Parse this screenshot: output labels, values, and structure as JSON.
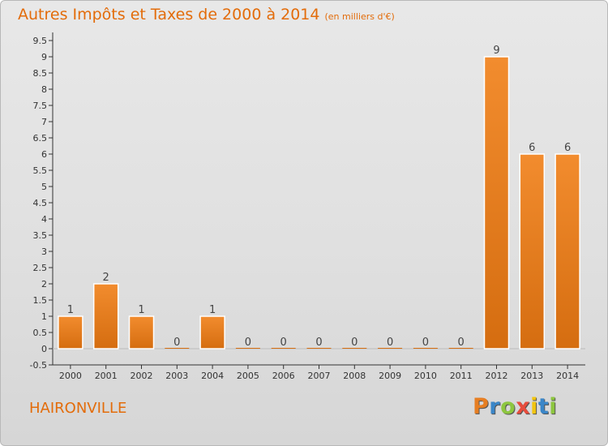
{
  "header": {
    "title": "Autres Impôts et Taxes de 2000 à 2014",
    "subtitle": "(en milliers d'€)"
  },
  "footer": {
    "place": "HAIRONVILLE",
    "logo_letters": [
      "P",
      "r",
      "o",
      "x",
      "i",
      "t",
      "i"
    ],
    "logo_colors": [
      "#e67e22",
      "#3a86c8",
      "#8dc63f",
      "#e74c3c",
      "#f1c40f",
      "#3a86c8",
      "#8dc63f"
    ]
  },
  "chart_data": {
    "type": "bar",
    "categories": [
      "2000",
      "2001",
      "2002",
      "2003",
      "2004",
      "2005",
      "2006",
      "2007",
      "2008",
      "2009",
      "2010",
      "2011",
      "2012",
      "2013",
      "2014"
    ],
    "values": [
      1,
      2,
      1,
      0,
      1,
      0,
      0,
      0,
      0,
      0,
      0,
      0,
      9,
      6,
      6
    ],
    "data_labels": [
      "1",
      "2",
      "1",
      "0",
      "1",
      "0",
      "0",
      "0",
      "0",
      "0",
      "0",
      "0",
      "9",
      "6",
      "6"
    ],
    "y_ticks": [
      "-0.5",
      "0",
      "0.5",
      "1",
      "1.5",
      "2",
      "2.5",
      "3",
      "3.5",
      "4",
      "4.5",
      "5",
      "5.5",
      "6",
      "6.5",
      "7",
      "7.5",
      "8",
      "8.5",
      "9",
      "9.5"
    ],
    "ylim": [
      -0.5,
      9.5
    ],
    "grid": false,
    "bar_color": "#f28c2e",
    "bar_color_dark": "#d56d10",
    "title": "Autres Impôts et Taxes de 2000 à 2014",
    "xlabel": "",
    "ylabel": ""
  }
}
